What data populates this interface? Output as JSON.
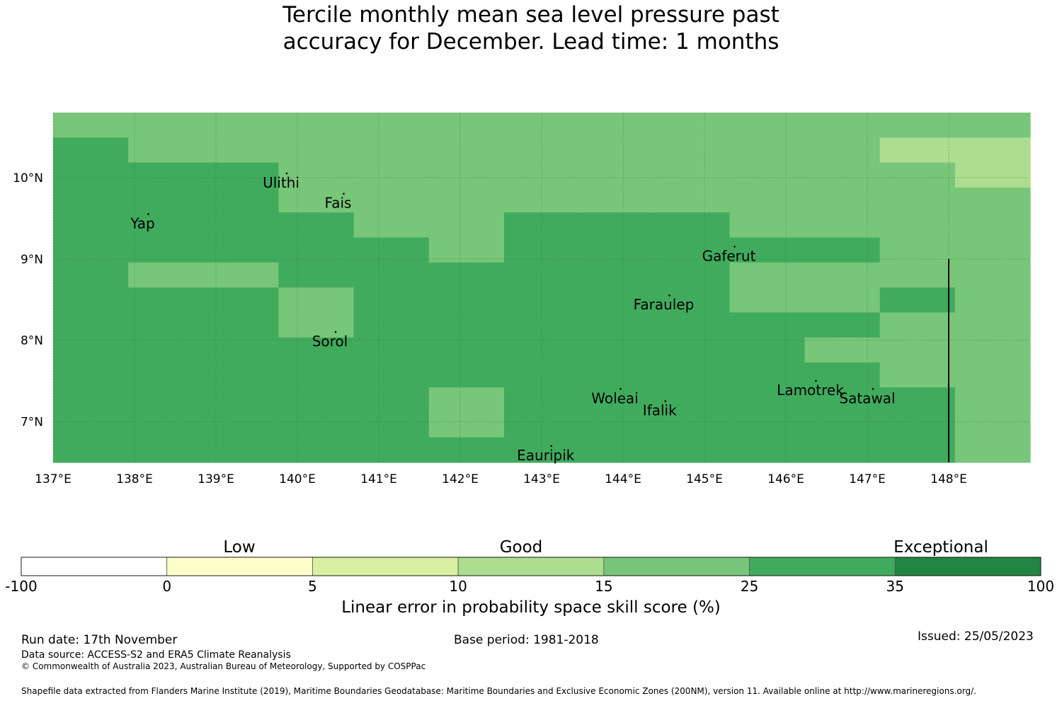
{
  "title": {
    "line1": "Tercile monthly mean sea level pressure past",
    "line2": "accuracy for December. Lead time: 1 months"
  },
  "map": {
    "lon_range": [
      137,
      149
    ],
    "lat_range": [
      6.5,
      10.8
    ],
    "lon_ticks": [
      "137°E",
      "138°E",
      "139°E",
      "140°E",
      "141°E",
      "142°E",
      "143°E",
      "144°E",
      "145°E",
      "146°E",
      "147°E",
      "148°E"
    ],
    "lat_ticks": [
      "10°N",
      "9°N",
      "8°N",
      "7°N"
    ],
    "colors": {
      "c15_25": "#78c679",
      "c25_35": "#41ab5d",
      "c10_15": "#addd8e",
      "c35_100": "#238443"
    },
    "islands": [
      {
        "name": "Yap",
        "lon": 138.1,
        "lat": 9.5
      },
      {
        "name": "Ulithi",
        "lon": 139.8,
        "lat": 10.0
      },
      {
        "name": "Fais",
        "lon": 140.5,
        "lat": 9.75
      },
      {
        "name": "Gaferut",
        "lon": 145.3,
        "lat": 9.1
      },
      {
        "name": "Faraulep",
        "lon": 144.5,
        "lat": 8.5
      },
      {
        "name": "Sorol",
        "lon": 140.4,
        "lat": 8.05
      },
      {
        "name": "Woleai",
        "lon": 143.9,
        "lat": 7.35
      },
      {
        "name": "Ifalik",
        "lon": 144.45,
        "lat": 7.2
      },
      {
        "name": "Lamotrek",
        "lon": 146.3,
        "lat": 7.45
      },
      {
        "name": "Satawal",
        "lon": 147.0,
        "lat": 7.35
      },
      {
        "name": "Eauripik",
        "lon": 143.05,
        "lat": 6.65
      }
    ],
    "labels": {
      "yap": "Yap",
      "ulithi": "Ulithi",
      "fais": "Fais",
      "gaferut": "Gaferut",
      "faraulep": "Faraulep",
      "sorol": "Sorol",
      "woleai": "Woleai",
      "ifalik": "Ifalik",
      "lamotrek": "Lamotrek",
      "satawal": "Satawal",
      "eauripik": "Eauripik"
    },
    "boundary_line_lon": 148.0,
    "grid_rows": [
      "111111111111",
      "2111111111133",
      "2221111111113",
      "2221111111111",
      "2222112221111",
      "2222212222211",
      "2112222221111",
      "2221222221121",
      "2221222222211",
      "2222222222111",
      "2222222222211",
      "2222212222221",
      "2222212222221",
      "2222222222221"
    ]
  },
  "colorbar": {
    "categories": [
      "Low",
      "Good",
      "Exceptional"
    ],
    "ticks": [
      "-100",
      "0",
      "5",
      "10",
      "15",
      "25",
      "35",
      "100"
    ],
    "colors": [
      "#ffffff",
      "#ffffcc",
      "#d9f0a3",
      "#addd8e",
      "#78c679",
      "#41ab5d",
      "#238443"
    ],
    "title": "Linear error in probability space skill score (%)"
  },
  "footer": {
    "run_date": "Run date: 17th November",
    "base_period": "Base period: 1981-2018",
    "issued": "Issued: 25/05/2023",
    "data_source": "Data source: ACCESS-S2 and ERA5 Climate Reanalysis",
    "copyright": "© Commonwealth of Australia 2023, Australian Bureau of Meteorology, Supported by COSPPac",
    "shapefile": "Shapefile data extracted from Flanders Marine Institute (2019), Maritime Boundaries Geodatabase: Maritime Boundaries and Exclusive Economic Zones (200NM), version 11. Available online at http://www.marineregions.org/."
  }
}
